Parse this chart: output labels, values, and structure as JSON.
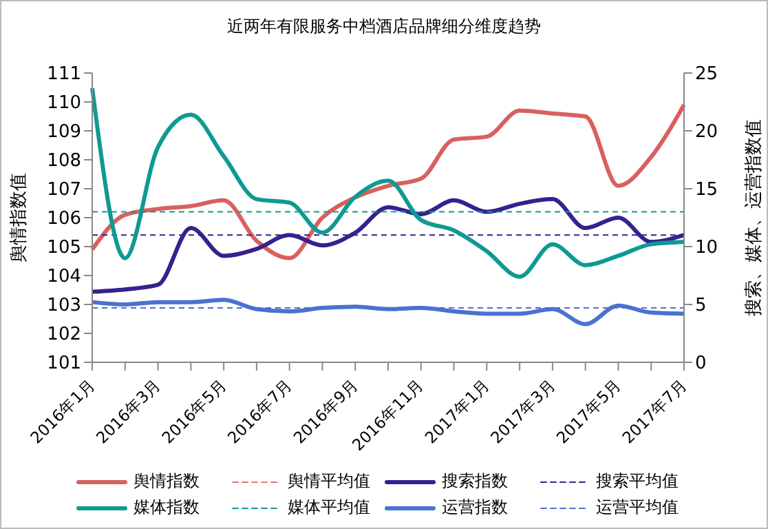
{
  "chart_data": {
    "type": "line",
    "title": "近两年有限服务中档酒店品牌细分维度趋势",
    "ylabel": "舆情指数值",
    "y2label": "搜索、媒体、运营指数值",
    "categories": [
      "2016年1月",
      null,
      "2016年3月",
      null,
      "2016年5月",
      null,
      "2016年7月",
      null,
      "2016年9月",
      null,
      "2016年11月",
      null,
      "2017年1月",
      null,
      "2017年3月",
      null,
      "2017年5月",
      null,
      "2017年7月"
    ],
    "ylim": [
      101,
      111
    ],
    "yticks": [
      101,
      102,
      103,
      104,
      105,
      106,
      107,
      108,
      109,
      110,
      111
    ],
    "y2lim": [
      0,
      25
    ],
    "y2ticks": [
      0,
      5,
      10,
      15,
      20,
      25
    ],
    "legend": "bottom",
    "marker": "none",
    "series": [
      {
        "name": "舆情指数",
        "color": "#d9605e",
        "line_style": "solid",
        "values": [
          104.9,
          106.1,
          106.3,
          106.4,
          106.6,
          105.2,
          104.6,
          106.0,
          106.7,
          107.1,
          107.35,
          108.7,
          108.8,
          109.7,
          109.6,
          109.5,
          107.1,
          108.1,
          109.9
        ]
      },
      {
        "name": "舆情平均值",
        "color": "#e8746f",
        "line_style": "dashed",
        "values": [
          null,
          null,
          null,
          null,
          null,
          null,
          null,
          null,
          null,
          null,
          null,
          null,
          null,
          null,
          null,
          null,
          null,
          null,
          null
        ]
      },
      {
        "name": "搜索指数",
        "color": "#35218f",
        "axis": "y2",
        "line_style": "solid",
        "values": [
          6.1,
          6.3,
          6.7,
          11.6,
          9.2,
          9.8,
          11.0,
          10.1,
          11.2,
          13.4,
          12.8,
          14.0,
          13.0,
          13.7,
          14.1,
          11.6,
          12.5,
          10.4,
          11.0
        ]
      },
      {
        "name": "搜索平均值",
        "color": "#35218f",
        "axis": "y2",
        "line_style": "dashed",
        "values": [
          11.0,
          11.0,
          11.0,
          11.0,
          11.0,
          11.0,
          11.0,
          11.0,
          11.0,
          11.0,
          11.0,
          11.0,
          11.0,
          11.0,
          11.0,
          11.0,
          11.0,
          11.0,
          11.0
        ]
      },
      {
        "name": "媒体指数",
        "color": "#0e9a93",
        "axis": "y2",
        "line_style": "solid",
        "values": [
          23.7,
          9.0,
          18.6,
          21.4,
          17.8,
          14.1,
          13.8,
          11.2,
          14.3,
          15.7,
          12.3,
          11.4,
          9.6,
          7.4,
          10.2,
          8.4,
          9.2,
          10.2,
          10.4
        ]
      },
      {
        "name": "媒体平均值",
        "color": "#0e9a93",
        "axis": "y2",
        "line_style": "dashed",
        "values": [
          13.0,
          13.0,
          13.0,
          13.0,
          13.0,
          13.0,
          13.0,
          13.0,
          13.0,
          13.0,
          13.0,
          13.0,
          13.0,
          13.0,
          13.0,
          13.0,
          13.0,
          13.0,
          13.0
        ]
      },
      {
        "name": "运营指数",
        "color": "#4a72cf",
        "axis": "y2",
        "line_style": "solid",
        "values": [
          5.2,
          5.0,
          5.2,
          5.2,
          5.4,
          4.6,
          4.4,
          4.7,
          4.8,
          4.6,
          4.7,
          4.4,
          4.2,
          4.2,
          4.6,
          3.3,
          4.9,
          4.3,
          4.2
        ]
      },
      {
        "name": "运营平均值",
        "color": "#4a72cf",
        "axis": "y2",
        "line_style": "dashed",
        "values": [
          4.7,
          4.7,
          4.7,
          4.7,
          4.7,
          4.7,
          4.7,
          4.7,
          4.7,
          4.7,
          4.7,
          4.7,
          4.7,
          4.7,
          4.7,
          4.7,
          4.7,
          4.7,
          4.7
        ]
      }
    ]
  }
}
